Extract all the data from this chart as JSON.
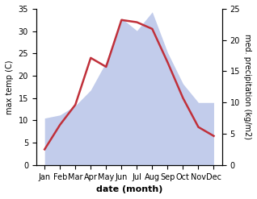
{
  "months": [
    "Jan",
    "Feb",
    "Mar",
    "Apr",
    "May",
    "Jun",
    "Jul",
    "Aug",
    "Sep",
    "Oct",
    "Nov",
    "Dec"
  ],
  "temp_c": [
    3.5,
    9.0,
    13.5,
    24.0,
    22.0,
    32.5,
    32.0,
    30.5,
    23.0,
    15.0,
    8.5,
    6.5
  ],
  "precip_mm": [
    7.5,
    8.0,
    9.5,
    12.0,
    16.5,
    23.5,
    21.5,
    24.5,
    18.0,
    13.0,
    10.0,
    10.0
  ],
  "temp_color": "#c0303a",
  "precip_fill_color": "#b8c4e8",
  "precip_fill_alpha": 0.85,
  "ylabel_left": "max temp (C)",
  "ylabel_right": "med. precipitation (kg/m2)",
  "xlabel": "date (month)",
  "ylim_left": [
    0,
    35
  ],
  "ylim_right": [
    0,
    25
  ],
  "yticks_left": [
    0,
    5,
    10,
    15,
    20,
    25,
    30,
    35
  ],
  "yticks_right": [
    0,
    5,
    10,
    15,
    20,
    25
  ],
  "background_color": "#ffffff",
  "temp_linewidth": 1.8,
  "tick_fontsize": 7,
  "label_fontsize": 7,
  "xlabel_fontsize": 8
}
